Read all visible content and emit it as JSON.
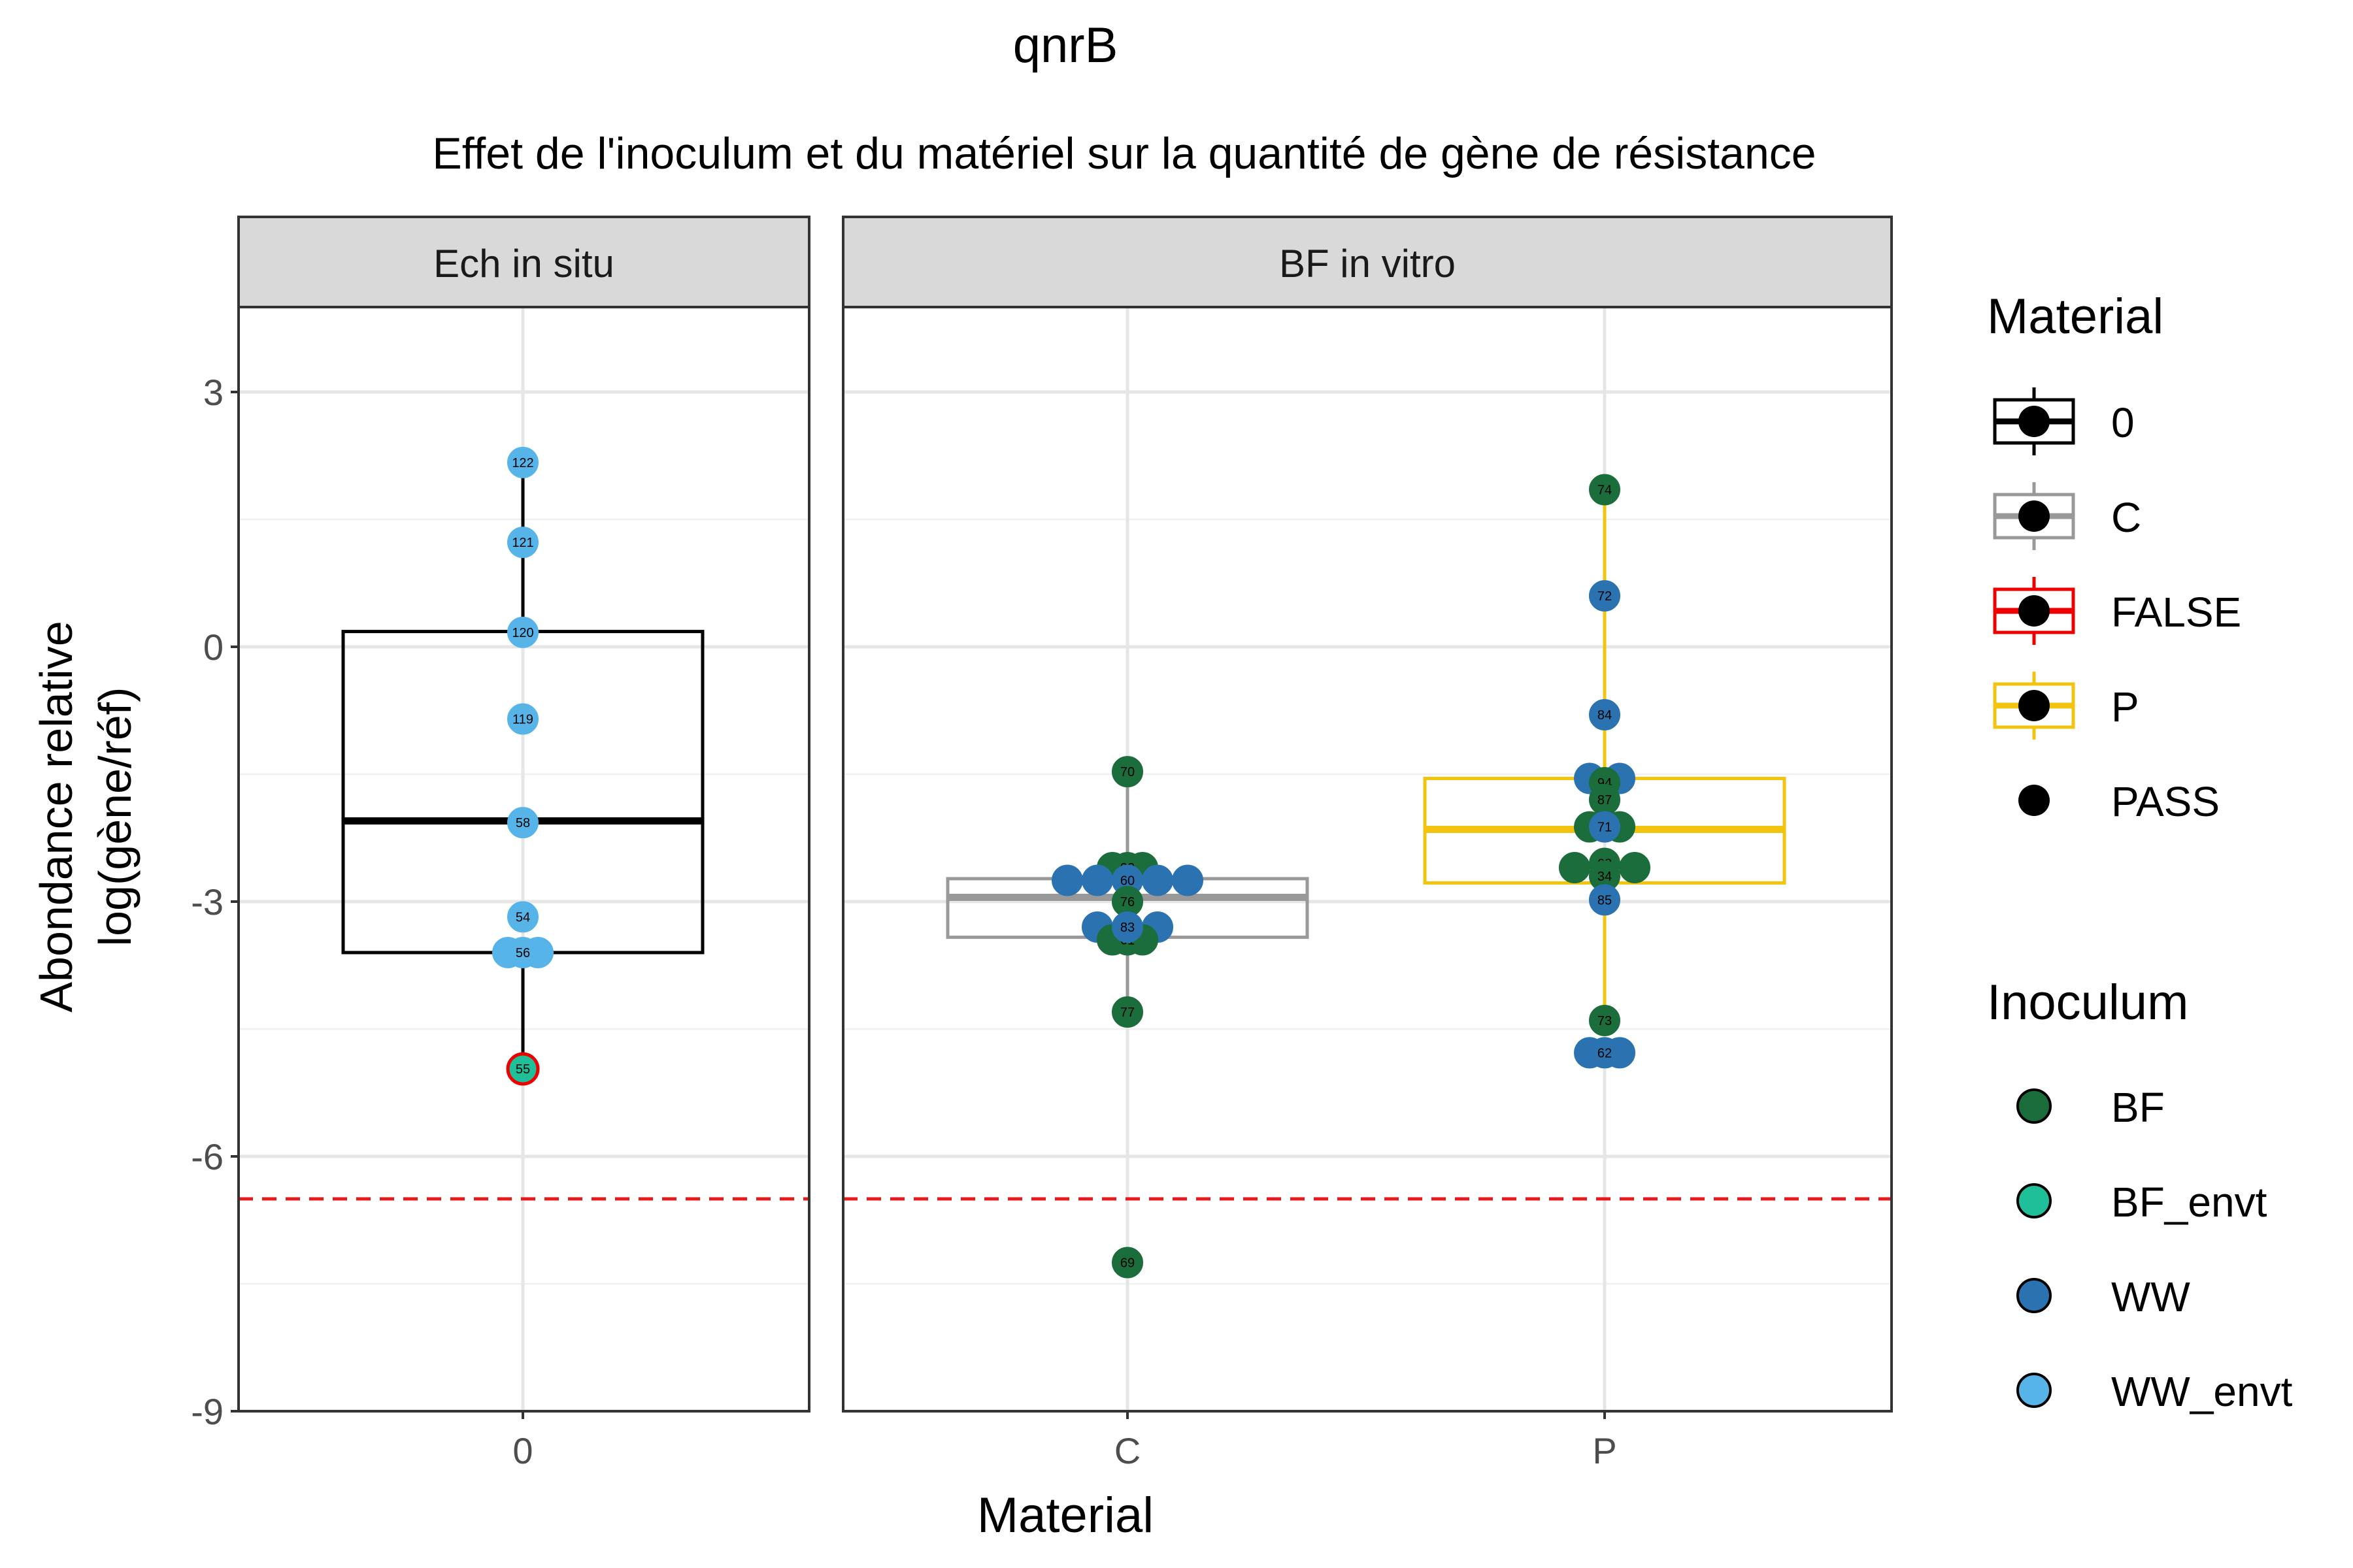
{
  "chart_data": {
    "type": "box",
    "title": "qnrB",
    "subtitle": "Effet de l'inoculum et du matériel sur la quantité de gène de résistance",
    "xlabel": "Material",
    "ylabel_lines": [
      "Abondance relative",
      "log(gène/réf)"
    ],
    "ylim": [
      -9,
      4
    ],
    "yticks": [
      3,
      0,
      -3,
      -6,
      -9
    ],
    "grid": true,
    "threshold": -6.5,
    "threshold_color": "#e41a1c",
    "colors": {
      "material": {
        "0": "#000000",
        "C": "#999999",
        "FALSE": "#ee0000",
        "P": "#f2c40f"
      },
      "inoculum": {
        "BF": "#1b6e3c",
        "BF_envt": "#1fbf99",
        "WW": "#2a73b0",
        "WW_envt": "#56b4e9"
      }
    },
    "panels": [
      {
        "strip": "Ech in situ",
        "categories": [
          "0"
        ],
        "boxes": [
          {
            "category": "0",
            "material": "0",
            "q1": -3.6,
            "median": -2.05,
            "q3": 0.18,
            "whisker_low": -4.95,
            "whisker_high": 2.17
          }
        ],
        "points": [
          {
            "category": "0",
            "dx": 0,
            "y": 2.17,
            "label": "122",
            "inoculum": "WW_envt"
          },
          {
            "category": "0",
            "dx": 0,
            "y": 1.23,
            "label": "121",
            "inoculum": "WW_envt"
          },
          {
            "category": "0",
            "dx": 0,
            "y": 0.17,
            "label": "120",
            "inoculum": "WW_envt"
          },
          {
            "category": "0",
            "dx": 0,
            "y": -0.85,
            "label": "119",
            "inoculum": "WW_envt"
          },
          {
            "category": "0",
            "dx": 0,
            "y": -2.07,
            "label": "58",
            "inoculum": "WW_envt"
          },
          {
            "category": "0",
            "dx": 0,
            "y": -3.18,
            "label": "54",
            "inoculum": "WW_envt"
          },
          {
            "category": "0",
            "dx": -0.5,
            "y": -3.6,
            "label": "",
            "inoculum": "WW_envt"
          },
          {
            "category": "0",
            "dx": 0.5,
            "y": -3.6,
            "label": "",
            "inoculum": "WW_envt"
          },
          {
            "category": "0",
            "dx": 0,
            "y": -3.6,
            "label": "56",
            "inoculum": "WW_envt",
            "ring": false
          },
          {
            "category": "0",
            "dx": 0,
            "y": -4.97,
            "label": "55",
            "inoculum": "BF_envt",
            "outline": "FALSE"
          }
        ]
      },
      {
        "strip": "BF in vitro",
        "categories": [
          "C",
          "P"
        ],
        "boxes": [
          {
            "category": "C",
            "material": "C",
            "q1": -3.42,
            "median": -2.95,
            "q3": -2.73,
            "whisker_low": -4.3,
            "whisker_high": -1.47
          },
          {
            "category": "P",
            "material": "P",
            "q1": -2.78,
            "median": -2.15,
            "q3": -1.55,
            "whisker_low": -4.4,
            "whisker_high": 1.85
          }
        ],
        "points": [
          {
            "category": "C",
            "dx": 0,
            "y": -1.47,
            "label": "70",
            "inoculum": "BF"
          },
          {
            "category": "C",
            "dx": -0.5,
            "y": -2.6,
            "label": "",
            "inoculum": "BF"
          },
          {
            "category": "C",
            "dx": 0.5,
            "y": -2.6,
            "label": "",
            "inoculum": "BF"
          },
          {
            "category": "C",
            "dx": 0,
            "y": -2.6,
            "label": "92",
            "inoculum": "BF"
          },
          {
            "category": "C",
            "dx": -2,
            "y": -2.75,
            "label": "",
            "inoculum": "WW"
          },
          {
            "category": "C",
            "dx": -1,
            "y": -2.75,
            "label": "",
            "inoculum": "WW"
          },
          {
            "category": "C",
            "dx": 1,
            "y": -2.75,
            "label": "",
            "inoculum": "WW"
          },
          {
            "category": "C",
            "dx": 2,
            "y": -2.75,
            "label": "",
            "inoculum": "WW"
          },
          {
            "category": "C",
            "dx": 0,
            "y": -2.75,
            "label": "60",
            "inoculum": "WW"
          },
          {
            "category": "C",
            "dx": 0,
            "y": -3.0,
            "label": "76",
            "inoculum": "BF"
          },
          {
            "category": "C",
            "dx": -1,
            "y": -3.3,
            "label": "",
            "inoculum": "WW"
          },
          {
            "category": "C",
            "dx": 1,
            "y": -3.3,
            "label": "",
            "inoculum": "WW"
          },
          {
            "category": "C",
            "dx": -0.5,
            "y": -3.45,
            "label": "",
            "inoculum": "BF"
          },
          {
            "category": "C",
            "dx": 0.5,
            "y": -3.45,
            "label": "",
            "inoculum": "BF"
          },
          {
            "category": "C",
            "dx": 0,
            "y": -3.45,
            "label": "61",
            "inoculum": "BF"
          },
          {
            "category": "C",
            "dx": 0,
            "y": -3.3,
            "label": "83",
            "inoculum": "WW"
          },
          {
            "category": "C",
            "dx": 0,
            "y": -4.3,
            "label": "77",
            "inoculum": "BF"
          },
          {
            "category": "C",
            "dx": 0,
            "y": -7.25,
            "label": "69",
            "inoculum": "BF"
          },
          {
            "category": "P",
            "dx": 0,
            "y": 1.85,
            "label": "74",
            "inoculum": "BF"
          },
          {
            "category": "P",
            "dx": 0,
            "y": 0.6,
            "label": "72",
            "inoculum": "WW"
          },
          {
            "category": "P",
            "dx": 0,
            "y": -0.8,
            "label": "84",
            "inoculum": "WW"
          },
          {
            "category": "P",
            "dx": -0.5,
            "y": -1.55,
            "label": "",
            "inoculum": "WW"
          },
          {
            "category": "P",
            "dx": 0.5,
            "y": -1.55,
            "label": "",
            "inoculum": "WW"
          },
          {
            "category": "P",
            "dx": 0,
            "y": -1.6,
            "label": "94",
            "inoculum": "BF"
          },
          {
            "category": "P",
            "dx": 0,
            "y": -1.8,
            "label": "87",
            "inoculum": "BF"
          },
          {
            "category": "P",
            "dx": -0.5,
            "y": -2.12,
            "label": "",
            "inoculum": "BF"
          },
          {
            "category": "P",
            "dx": 0.5,
            "y": -2.12,
            "label": "",
            "inoculum": "BF"
          },
          {
            "category": "P",
            "dx": 0,
            "y": -2.12,
            "label": "71",
            "inoculum": "WW"
          },
          {
            "category": "P",
            "dx": -1,
            "y": -2.6,
            "label": "",
            "inoculum": "BF"
          },
          {
            "category": "P",
            "dx": 1,
            "y": -2.6,
            "label": "",
            "inoculum": "BF"
          },
          {
            "category": "P",
            "dx": 0,
            "y": -2.55,
            "label": "63",
            "inoculum": "BF"
          },
          {
            "category": "P",
            "dx": 0,
            "y": -2.7,
            "label": "34",
            "inoculum": "BF"
          },
          {
            "category": "P",
            "dx": 0,
            "y": -2.98,
            "label": "85",
            "inoculum": "WW"
          },
          {
            "category": "P",
            "dx": 0,
            "y": -4.4,
            "label": "73",
            "inoculum": "BF"
          },
          {
            "category": "P",
            "dx": -0.5,
            "y": -4.78,
            "label": "",
            "inoculum": "WW"
          },
          {
            "category": "P",
            "dx": 0.5,
            "y": -4.78,
            "label": "",
            "inoculum": "WW"
          },
          {
            "category": "P",
            "dx": 0,
            "y": -4.78,
            "label": "62",
            "inoculum": "WW"
          }
        ]
      }
    ],
    "legend_position": "right",
    "legends": [
      {
        "title": "Material",
        "kind": "box",
        "entries": [
          "0",
          "C",
          "FALSE",
          "P",
          "PASS"
        ]
      },
      {
        "title": "Inoculum",
        "kind": "point",
        "entries": [
          "BF",
          "BF_envt",
          "WW",
          "WW_envt"
        ]
      }
    ]
  }
}
